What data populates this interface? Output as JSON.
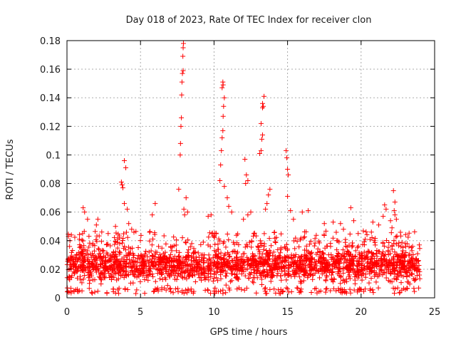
{
  "chart_data": {
    "type": "scatter",
    "title": "Day 018 of 2023, Rate Of TEC Index for receiver clon",
    "xlabel": "GPS time / hours",
    "ylabel": "ROTI / TECUs",
    "xlim": [
      0,
      25
    ],
    "ylim": [
      0,
      0.18
    ],
    "x_ticks": [
      0,
      5,
      10,
      15,
      20,
      25
    ],
    "x_tick_labels": [
      "0",
      "5",
      "10",
      "15",
      "20",
      "25"
    ],
    "y_ticks": [
      0,
      0.02,
      0.04,
      0.06,
      0.08,
      0.1,
      0.12,
      0.14,
      0.16,
      0.18
    ],
    "y_tick_labels": [
      "0",
      "0.02",
      "0.04",
      "0.06",
      "0.08",
      "0.1",
      "0.12",
      "0.14",
      "0.16",
      "0.18"
    ],
    "grid": true,
    "marker": "plus",
    "color": "#ff0000",
    "series": [
      {
        "name": "ROTI",
        "points": [
          [
            0.1,
            0.043
          ],
          [
            0.2,
            0.04
          ],
          [
            0.3,
            0.044
          ],
          [
            1.1,
            0.063
          ],
          [
            1.2,
            0.06
          ],
          [
            1.4,
            0.055
          ],
          [
            2.0,
            0.051
          ],
          [
            2.1,
            0.055
          ],
          [
            2.8,
            0.045
          ],
          [
            3.3,
            0.05
          ],
          [
            3.7,
            0.081
          ],
          [
            3.75,
            0.079
          ],
          [
            3.8,
            0.077
          ],
          [
            3.9,
            0.096
          ],
          [
            4.0,
            0.091
          ],
          [
            3.9,
            0.066
          ],
          [
            4.1,
            0.062
          ],
          [
            4.2,
            0.052
          ],
          [
            4.4,
            0.048
          ],
          [
            5.8,
            0.058
          ],
          [
            6.0,
            0.066
          ],
          [
            7.6,
            0.076
          ],
          [
            7.7,
            0.1
          ],
          [
            7.72,
            0.108
          ],
          [
            7.75,
            0.12
          ],
          [
            7.78,
            0.126
          ],
          [
            7.8,
            0.142
          ],
          [
            7.82,
            0.151
          ],
          [
            7.85,
            0.157
          ],
          [
            7.88,
            0.169
          ],
          [
            7.9,
            0.175
          ],
          [
            7.92,
            0.178
          ],
          [
            7.9,
            0.159
          ],
          [
            7.95,
            0.062
          ],
          [
            8.1,
            0.07
          ],
          [
            8.2,
            0.06
          ],
          [
            8.0,
            0.058
          ],
          [
            9.6,
            0.057
          ],
          [
            9.8,
            0.058
          ],
          [
            10.4,
            0.082
          ],
          [
            10.45,
            0.093
          ],
          [
            10.5,
            0.103
          ],
          [
            10.55,
            0.112
          ],
          [
            10.6,
            0.117
          ],
          [
            10.62,
            0.127
          ],
          [
            10.65,
            0.134
          ],
          [
            10.7,
            0.14
          ],
          [
            10.55,
            0.147
          ],
          [
            10.6,
            0.151
          ],
          [
            10.62,
            0.149
          ],
          [
            10.7,
            0.078
          ],
          [
            10.9,
            0.07
          ],
          [
            11.0,
            0.064
          ],
          [
            11.2,
            0.06
          ],
          [
            12.1,
            0.097
          ],
          [
            12.2,
            0.086
          ],
          [
            12.3,
            0.082
          ],
          [
            12.15,
            0.08
          ],
          [
            12.5,
            0.06
          ],
          [
            12.3,
            0.058
          ],
          [
            12.0,
            0.055
          ],
          [
            13.1,
            0.101
          ],
          [
            13.2,
            0.103
          ],
          [
            13.25,
            0.111
          ],
          [
            13.3,
            0.114
          ],
          [
            13.2,
            0.122
          ],
          [
            13.3,
            0.133
          ],
          [
            13.35,
            0.134
          ],
          [
            13.4,
            0.141
          ],
          [
            13.3,
            0.136
          ],
          [
            13.6,
            0.066
          ],
          [
            13.7,
            0.072
          ],
          [
            13.8,
            0.076
          ],
          [
            13.5,
            0.062
          ],
          [
            14.9,
            0.103
          ],
          [
            14.95,
            0.098
          ],
          [
            15.0,
            0.09
          ],
          [
            15.05,
            0.086
          ],
          [
            15.0,
            0.071
          ],
          [
            15.2,
            0.061
          ],
          [
            15.4,
            0.055
          ],
          [
            16.0,
            0.06
          ],
          [
            16.4,
            0.061
          ],
          [
            17.5,
            0.052
          ],
          [
            18.1,
            0.053
          ],
          [
            18.6,
            0.052
          ],
          [
            18.8,
            0.048
          ],
          [
            19.3,
            0.063
          ],
          [
            19.5,
            0.054
          ],
          [
            19.8,
            0.045
          ],
          [
            20.8,
            0.053
          ],
          [
            20.7,
            0.046
          ],
          [
            21.2,
            0.051
          ],
          [
            21.5,
            0.057
          ],
          [
            21.6,
            0.065
          ],
          [
            21.7,
            0.062
          ],
          [
            22.0,
            0.054
          ],
          [
            22.2,
            0.075
          ],
          [
            22.3,
            0.067
          ],
          [
            22.25,
            0.061
          ],
          [
            22.3,
            0.058
          ],
          [
            22.4,
            0.055
          ],
          [
            22.1,
            0.049
          ],
          [
            23.0,
            0.038
          ],
          [
            23.5,
            0.036
          ]
        ]
      }
    ],
    "background_band": {
      "description": "dense cloud of observations across the full day",
      "x_range": [
        0,
        24
      ],
      "typical_range": [
        0.007,
        0.035
      ],
      "min_value": 0.003
    }
  }
}
